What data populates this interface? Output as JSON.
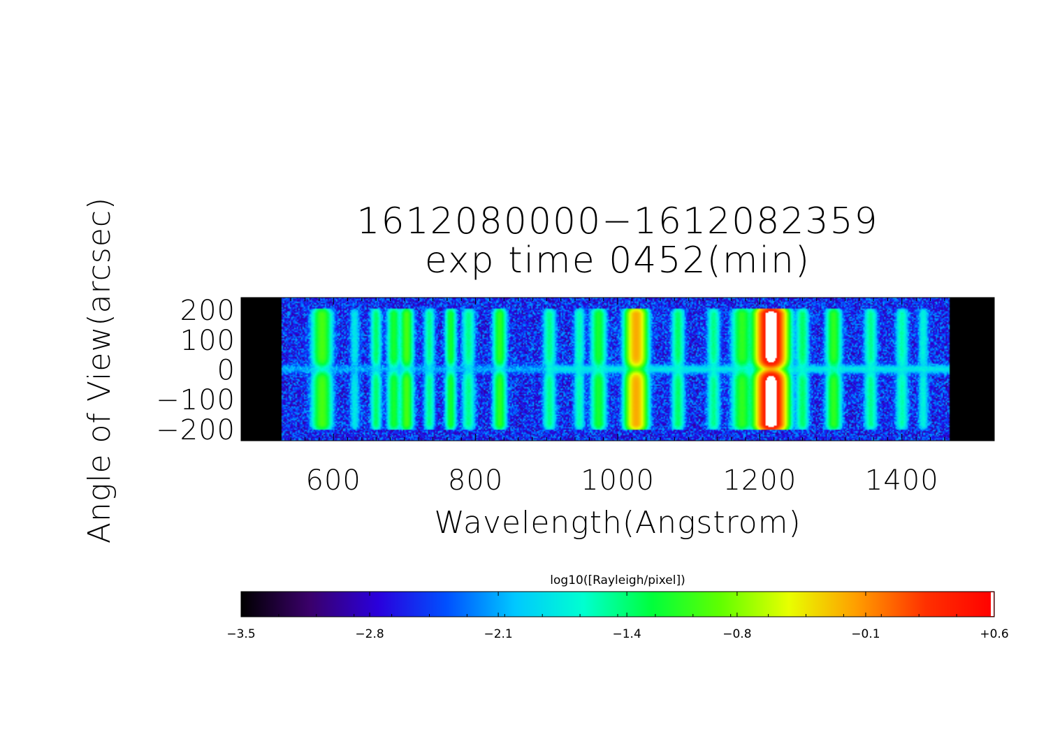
{
  "chart_data": {
    "type": "heatmap",
    "title": "1612080000−1612082359",
    "subtitle": "exp time 0452(min)",
    "xlabel": "Wavelength(Angstrom)",
    "ylabel": "Angle of View(arcsec)",
    "xlim": [
      470,
      1530
    ],
    "ylim": [
      -240,
      240
    ],
    "x_ticks": [
      "600",
      "800",
      "1000",
      "1200",
      "1400"
    ],
    "x_tick_values": [
      600,
      800,
      1000,
      1200,
      1400
    ],
    "y_ticks": [
      "200",
      "100",
      "0",
      "−100",
      "−200"
    ],
    "y_tick_values": [
      200,
      100,
      0,
      -100,
      -200
    ],
    "detector_range": [
      527,
      1468
    ],
    "colorbar": {
      "label": "log10([Rayleigh/pixel])",
      "ticks": [
        "−3.5",
        "−2.8",
        "−2.1",
        "−1.4",
        "−0.8",
        "−0.1",
        "+0.6"
      ],
      "tick_values": [
        -3.5,
        -2.8,
        -2.1,
        -1.4,
        -0.8,
        -0.1,
        0.6
      ],
      "range": [
        -3.5,
        0.6
      ],
      "colormap": [
        "#000000",
        "#3a006a",
        "#2a00dc",
        "#0050ff",
        "#00c8ff",
        "#00ffd0",
        "#00ff3c",
        "#60ff00",
        "#e8ff00",
        "#ff9c00",
        "#ff3000",
        "#ff0000"
      ]
    },
    "emission_lines": [
      {
        "wavelength": 584,
        "peak": -1.0,
        "width": 9
      },
      {
        "wavelength": 630,
        "peak": -1.9,
        "width": 5
      },
      {
        "wavelength": 660,
        "peak": -1.4,
        "width": 5
      },
      {
        "wavelength": 685,
        "peak": -1.2,
        "width": 6
      },
      {
        "wavelength": 703,
        "peak": -1.0,
        "width": 6
      },
      {
        "wavelength": 735,
        "peak": -1.5,
        "width": 5
      },
      {
        "wavelength": 765,
        "peak": -1.2,
        "width": 5
      },
      {
        "wavelength": 790,
        "peak": -1.5,
        "width": 6
      },
      {
        "wavelength": 834,
        "peak": -1.1,
        "width": 6
      },
      {
        "wavelength": 904,
        "peak": -1.5,
        "width": 6
      },
      {
        "wavelength": 946,
        "peak": -1.6,
        "width": 5
      },
      {
        "wavelength": 973,
        "peak": -1.2,
        "width": 7
      },
      {
        "wavelength": 1026,
        "peak": -0.2,
        "width": 9
      },
      {
        "wavelength": 1085,
        "peak": -1.4,
        "width": 6
      },
      {
        "wavelength": 1135,
        "peak": -1.5,
        "width": 6
      },
      {
        "wavelength": 1175,
        "peak": -1.1,
        "width": 9
      },
      {
        "wavelength": 1216,
        "peak": 0.6,
        "width": 12
      },
      {
        "wavelength": 1260,
        "peak": -1.4,
        "width": 6
      },
      {
        "wavelength": 1304,
        "peak": -1.1,
        "width": 7
      },
      {
        "wavelength": 1356,
        "peak": -1.5,
        "width": 6
      },
      {
        "wavelength": 1400,
        "peak": -1.6,
        "width": 6
      },
      {
        "wavelength": 1430,
        "peak": -1.8,
        "width": 5
      }
    ],
    "grid": false
  }
}
